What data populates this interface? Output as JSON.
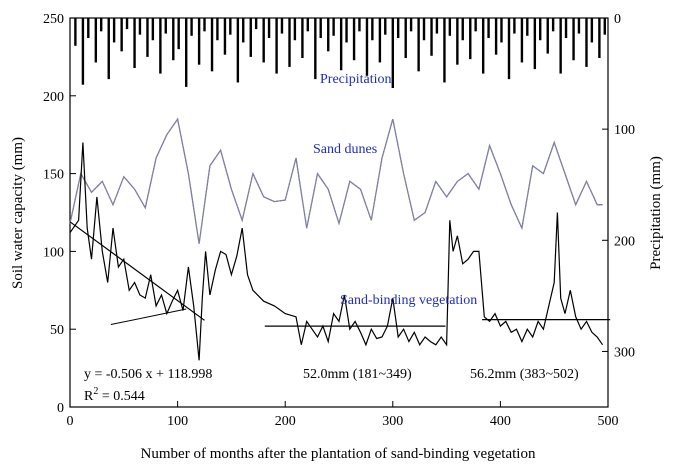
{
  "chart_data": {
    "type": "line",
    "xlabel": "Number of months after the plantation of sand-binding vegetation",
    "ylabel_left": "Soil water capacity (mm)",
    "ylabel_right": "Precipitation (mm)",
    "xlim": [
      0,
      500
    ],
    "ylim_left": [
      0,
      250
    ],
    "ylim_right_inverted": [
      0,
      350
    ],
    "x_ticks": [
      0,
      100,
      200,
      300,
      400,
      500
    ],
    "y_left_ticks": [
      0,
      50,
      100,
      150,
      200,
      250
    ],
    "y_right_ticks": [
      0,
      100,
      200,
      300
    ],
    "grid": false,
    "annotations": {
      "precipitation": "Precipitation",
      "sand_dunes": "Sand dunes",
      "vegetation": "Sand-binding vegetation",
      "regression_eq": "y = -0.506 x + 118.998",
      "r2_label": "R",
      "r2_sup": "2",
      "r2_value": " = 0.544",
      "mean1": "52.0mm (181~349)",
      "mean2": "56.2mm (383~502)"
    },
    "series": [
      {
        "name": "Sand dunes",
        "style": "observed-dotted + smoothed-gray",
        "x": [
          0,
          10,
          20,
          30,
          40,
          50,
          60,
          70,
          80,
          90,
          100,
          110,
          120,
          130,
          140,
          150,
          160,
          170,
          180,
          190,
          200,
          210,
          220,
          230,
          240,
          250,
          260,
          270,
          280,
          290,
          300,
          310,
          320,
          330,
          340,
          350,
          360,
          370,
          380,
          390,
          400,
          410,
          420,
          430,
          440,
          450,
          460,
          470,
          480,
          490,
          495
        ],
        "values": [
          118,
          150,
          138,
          145,
          130,
          148,
          140,
          128,
          160,
          175,
          185,
          150,
          105,
          155,
          165,
          140,
          120,
          150,
          135,
          132,
          133,
          160,
          115,
          150,
          140,
          118,
          145,
          140,
          120,
          160,
          185,
          150,
          120,
          125,
          145,
          135,
          145,
          150,
          140,
          168,
          150,
          130,
          115,
          155,
          150,
          170,
          150,
          130,
          145,
          130,
          130
        ]
      },
      {
        "name": "Sand-binding vegetation",
        "style": "solid-black",
        "x": [
          0,
          8,
          12,
          16,
          20,
          25,
          30,
          35,
          40,
          45,
          50,
          55,
          60,
          65,
          70,
          75,
          80,
          85,
          90,
          95,
          100,
          105,
          110,
          115,
          120,
          123,
          126,
          130,
          135,
          140,
          145,
          150,
          155,
          160,
          165,
          170,
          180,
          190,
          200,
          210,
          215,
          220,
          225,
          230,
          235,
          240,
          245,
          250,
          255,
          260,
          265,
          270,
          275,
          280,
          285,
          290,
          295,
          300,
          305,
          310,
          315,
          320,
          325,
          330,
          335,
          340,
          345,
          350,
          353,
          356,
          360,
          365,
          370,
          375,
          380,
          385,
          390,
          395,
          400,
          405,
          410,
          415,
          420,
          425,
          430,
          435,
          440,
          445,
          450,
          453,
          456,
          460,
          465,
          470,
          475,
          480,
          485,
          490,
          495
        ],
        "values": [
          112,
          120,
          170,
          115,
          95,
          135,
          100,
          80,
          115,
          90,
          95,
          75,
          80,
          72,
          70,
          85,
          65,
          72,
          60,
          68,
          75,
          62,
          90,
          65,
          30,
          70,
          100,
          72,
          88,
          100,
          98,
          85,
          97,
          115,
          85,
          75,
          68,
          65,
          60,
          58,
          40,
          55,
          50,
          45,
          52,
          42,
          60,
          55,
          72,
          50,
          55,
          48,
          40,
          50,
          44,
          45,
          52,
          70,
          45,
          50,
          42,
          48,
          40,
          45,
          42,
          40,
          45,
          40,
          120,
          100,
          110,
          92,
          95,
          100,
          100,
          58,
          55,
          60,
          52,
          55,
          48,
          50,
          42,
          50,
          45,
          55,
          50,
          65,
          80,
          125,
          70,
          60,
          75,
          58,
          50,
          55,
          48,
          45,
          40
        ]
      },
      {
        "name": "Regression fit",
        "style": "solid-thin",
        "x": [
          0,
          125
        ],
        "values": [
          118.998,
          55.75
        ]
      },
      {
        "name": "Mean 181~349",
        "style": "solid-thin",
        "x": [
          181,
          349
        ],
        "values": [
          52.0,
          52.0
        ]
      },
      {
        "name": "Mean 383~502",
        "style": "solid-thin",
        "x": [
          383,
          502
        ],
        "values": [
          56.2,
          56.2
        ]
      },
      {
        "name": "Precipitation",
        "style": "bars-from-top",
        "x": [
          5,
          12,
          17,
          24,
          29,
          36,
          41,
          48,
          53,
          60,
          65,
          72,
          77,
          84,
          89,
          96,
          101,
          108,
          113,
          120,
          125,
          132,
          137,
          144,
          149,
          156,
          161,
          168,
          173,
          180,
          185,
          192,
          197,
          204,
          209,
          216,
          221,
          228,
          233,
          240,
          245,
          252,
          257,
          264,
          269,
          276,
          281,
          288,
          293,
          300,
          305,
          312,
          317,
          324,
          329,
          336,
          341,
          348,
          353,
          360,
          365,
          372,
          377,
          384,
          389,
          396,
          401,
          408,
          413,
          420,
          425,
          432,
          437,
          444,
          449,
          456,
          461,
          468,
          473,
          480,
          485,
          492,
          497
        ],
        "values": [
          25,
          60,
          18,
          40,
          12,
          55,
          22,
          30,
          10,
          45,
          15,
          35,
          20,
          50,
          14,
          38,
          28,
          62,
          16,
          42,
          12,
          48,
          20,
          33,
          15,
          58,
          22,
          35,
          10,
          40,
          18,
          50,
          14,
          44,
          20,
          36,
          12,
          55,
          18,
          30,
          16,
          47,
          22,
          38,
          12,
          52,
          20,
          40,
          15,
          63,
          18,
          36,
          12,
          48,
          20,
          34,
          14,
          58,
          16,
          42,
          20,
          37,
          12,
          50,
          18,
          33,
          22,
          55,
          14,
          40,
          16,
          46,
          20,
          32,
          12,
          50,
          18,
          38,
          14,
          44,
          22,
          36,
          15
        ]
      }
    ]
  }
}
